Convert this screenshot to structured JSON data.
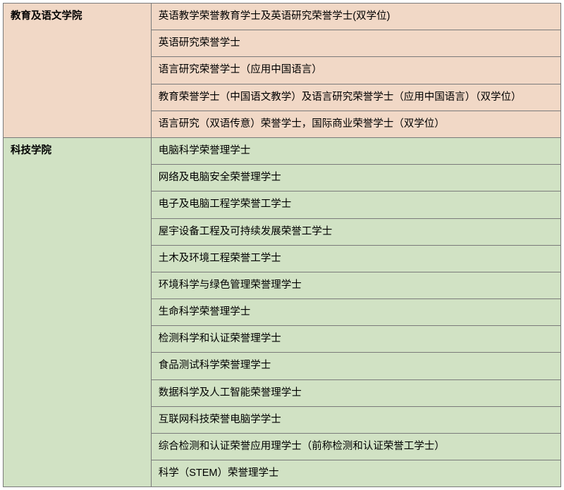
{
  "table": {
    "col_left_width": 210,
    "col_right_width": 582,
    "border_color": "#7a7a7a",
    "text_color": "#000000",
    "font_size": 14.5,
    "groups": [
      {
        "name": "教育及语文学院",
        "bg_color": "#f1d8c6",
        "rows": [
          "英语教学荣誉教育学士及英语研究荣誉学士(双学位)",
          "英语研究荣誉学士",
          "语言研究荣誉学士（应用中国语言）",
          "教育荣誉学士（中国语文教学）及语言研究荣誉学士（应用中国语言）（双学位）",
          "语言研究（双语传意）荣誉学士，国际商业荣誉学士（双学位）"
        ]
      },
      {
        "name": "科技学院",
        "bg_color": "#d1e2c4",
        "rows": [
          "电脑科学荣誉理学士",
          "网络及电脑安全荣誉理学士",
          "电子及电脑工程学荣誉工学士",
          "屋宇设备工程及可持续发展荣誉工学士",
          "土木及环境工程荣誉工学士",
          "环境科学与绿色管理荣誉理学士",
          "生命科学荣誉理学士",
          "检测科学和认证荣誉理学士",
          "食品测试科学荣誉理学士",
          "数据科学及人工智能荣誉理学士",
          "互联网科技荣誉电脑学学士",
          "综合检测和认证荣誉应用理学士（前称检测和认证荣誉工学士）",
          "科学（STEM）荣誉理学士"
        ]
      }
    ]
  }
}
